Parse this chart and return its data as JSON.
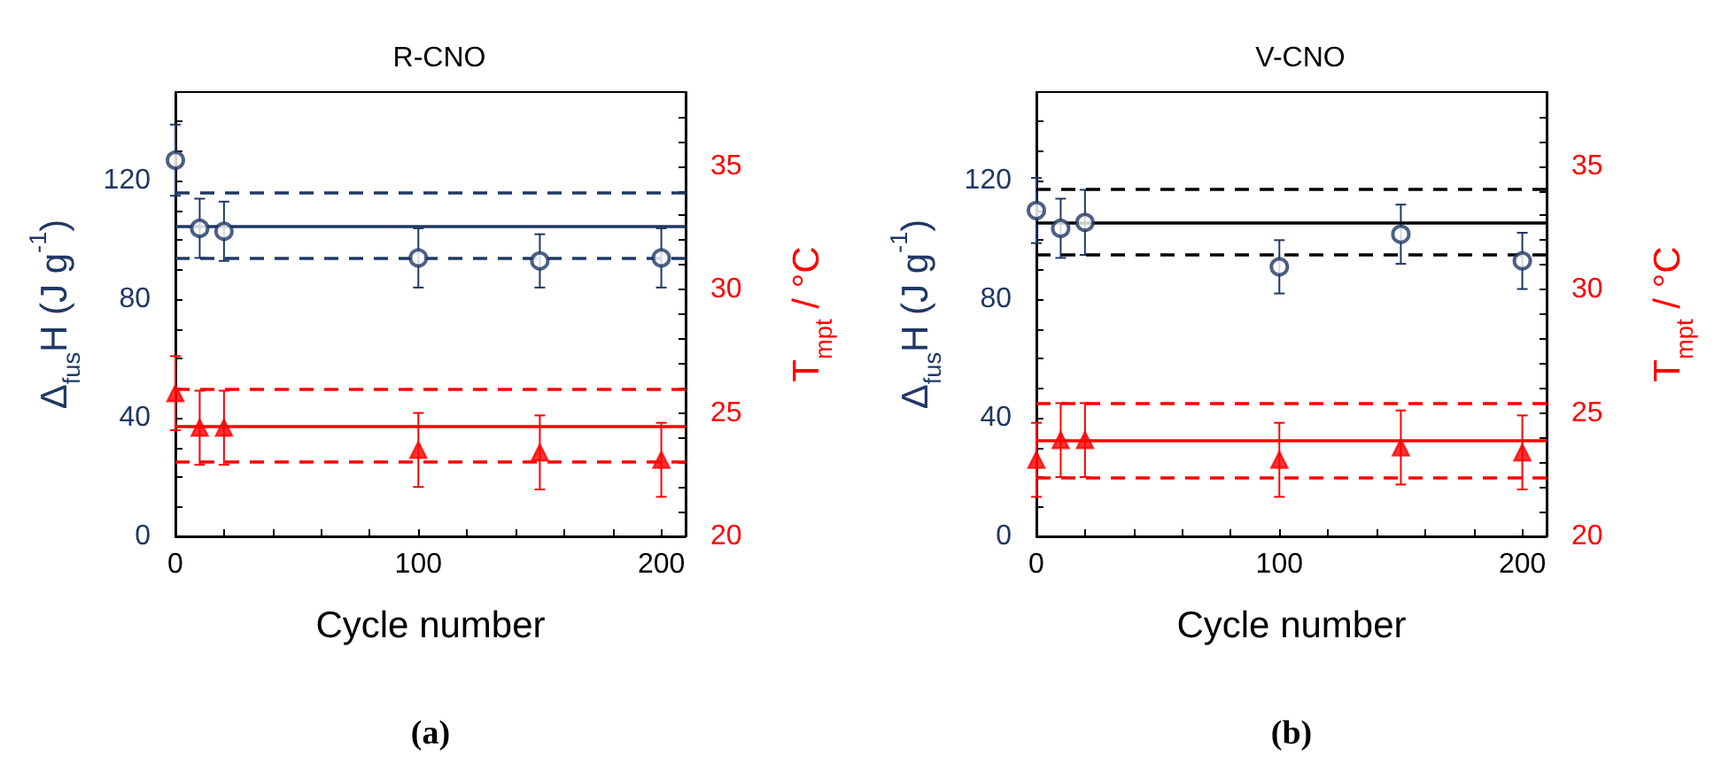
{
  "chart_data": [
    {
      "type": "scatter",
      "title": "R-CNO",
      "xlabel": "Cycle number",
      "ylabel": "Δ$_{fus}$H (J g$^{-1}$)",
      "y2label": "T$_{mpt}$ / °C",
      "annotations": [
        "(a)"
      ],
      "xlim": [
        0,
        210
      ],
      "xticks": [
        0,
        {
          "value": 20,
          "label": null
        },
        {
          "value": 40,
          "label": null
        },
        {
          "value": 60,
          "label": null
        },
        {
          "value": 80,
          "label": null
        },
        100,
        {
          "value": 120,
          "label": null
        },
        {
          "value": 140,
          "label": null
        },
        {
          "value": 160,
          "label": null
        },
        {
          "value": 180,
          "label": null
        },
        200
      ],
      "ylim": [
        0,
        150
      ],
      "yticks": [
        0,
        {
          "value": 10,
          "label": null
        },
        {
          "value": 20,
          "label": null
        },
        {
          "value": 30,
          "label": null
        },
        40,
        {
          "value": 50,
          "label": null
        },
        {
          "value": 60,
          "label": null
        },
        {
          "value": 70,
          "label": null
        },
        80,
        {
          "value": 90,
          "label": null
        },
        {
          "value": 100,
          "label": null
        },
        {
          "value": 110,
          "label": null
        },
        120,
        {
          "value": 130,
          "label": null
        },
        {
          "value": 140,
          "label": null
        }
      ],
      "y2lim": [
        20,
        38
      ],
      "y2ticks": [
        20,
        {
          "value": 21,
          "label": null
        },
        {
          "value": 22,
          "label": null
        },
        {
          "value": 23,
          "label": null
        },
        {
          "value": 24,
          "label": null
        },
        25,
        {
          "value": 26,
          "label": null
        },
        {
          "value": 27,
          "label": null
        },
        {
          "value": 28,
          "label": null
        },
        {
          "value": 29,
          "label": null
        },
        30,
        {
          "value": 31,
          "label": null
        },
        {
          "value": 32,
          "label": null
        },
        {
          "value": 33,
          "label": null
        },
        {
          "value": 34,
          "label": null
        },
        35,
        {
          "value": 36,
          "label": null
        },
        {
          "value": 37,
          "label": null
        }
      ],
      "grid": false,
      "series": [
        {
          "axis": "y",
          "color": "#203864",
          "marker": "circle",
          "x": [
            0,
            10,
            20,
            100,
            150,
            200
          ],
          "values": [
            127,
            104,
            103,
            94,
            93,
            94
          ],
          "errors": [
            12,
            10,
            10,
            10,
            9,
            10
          ]
        },
        {
          "axis": "y2",
          "color": "#ff0000",
          "marker": "triangle",
          "x": [
            0,
            10,
            20,
            100,
            150,
            200
          ],
          "values": [
            25.8,
            24.4,
            24.4,
            23.5,
            23.4,
            23.1
          ],
          "errors": [
            1.5,
            1.5,
            1.5,
            1.5,
            1.5,
            1.5
          ]
        }
      ],
      "ref_lines": [
        {
          "axis": "y",
          "value": 105,
          "color": "#203864",
          "line_style": "solid"
        },
        {
          "axis": "y",
          "value": 116,
          "color": "#203864",
          "line_style": "dashed"
        },
        {
          "axis": "y",
          "value": 94,
          "color": "#203864",
          "line_style": "dashed"
        },
        {
          "axis": "y2",
          "value": 24.5,
          "color": "#ff0000",
          "line_style": "solid"
        },
        {
          "axis": "y2",
          "value": 26,
          "color": "#ff0000",
          "line_style": "dashed"
        },
        {
          "axis": "y2",
          "value": 23,
          "color": "#ff0000",
          "line_style": "dashed"
        }
      ]
    },
    {
      "type": "scatter",
      "title": "V-CNO",
      "xlabel": "Cycle number",
      "ylabel": "Δ$_{fus}$H (J g$^{-1}$)",
      "y2label": "T$_{mpt}$ / °C",
      "annotations": [
        "(b)"
      ],
      "xlim": [
        0,
        210
      ],
      "xticks": [
        0,
        {
          "value": 20,
          "label": null
        },
        {
          "value": 40,
          "label": null
        },
        {
          "value": 60,
          "label": null
        },
        {
          "value": 80,
          "label": null
        },
        100,
        {
          "value": 120,
          "label": null
        },
        {
          "value": 140,
          "label": null
        },
        {
          "value": 160,
          "label": null
        },
        {
          "value": 180,
          "label": null
        },
        200
      ],
      "ylim": [
        0,
        150
      ],
      "yticks": [
        0,
        {
          "value": 10,
          "label": null
        },
        {
          "value": 20,
          "label": null
        },
        {
          "value": 30,
          "label": null
        },
        40,
        {
          "value": 50,
          "label": null
        },
        {
          "value": 60,
          "label": null
        },
        {
          "value": 70,
          "label": null
        },
        80,
        {
          "value": 90,
          "label": null
        },
        {
          "value": 100,
          "label": null
        },
        {
          "value": 110,
          "label": null
        },
        120,
        {
          "value": 130,
          "label": null
        },
        {
          "value": 140,
          "label": null
        }
      ],
      "y2lim": [
        20,
        38
      ],
      "y2ticks": [
        20,
        {
          "value": 21,
          "label": null
        },
        {
          "value": 22,
          "label": null
        },
        {
          "value": 23,
          "label": null
        },
        {
          "value": 24,
          "label": null
        },
        25,
        {
          "value": 26,
          "label": null
        },
        {
          "value": 27,
          "label": null
        },
        {
          "value": 28,
          "label": null
        },
        {
          "value": 29,
          "label": null
        },
        30,
        {
          "value": 31,
          "label": null
        },
        {
          "value": 32,
          "label": null
        },
        {
          "value": 33,
          "label": null
        },
        {
          "value": 34,
          "label": null
        },
        35,
        {
          "value": 36,
          "label": null
        },
        {
          "value": 37,
          "label": null
        }
      ],
      "grid": false,
      "series": [
        {
          "axis": "y",
          "color": "#203864",
          "marker": "circle",
          "x": [
            0,
            10,
            20,
            100,
            150,
            200
          ],
          "values": [
            110,
            104,
            106,
            91,
            102,
            93
          ],
          "errors": [
            11,
            10,
            11,
            9,
            10,
            9.5
          ]
        },
        {
          "axis": "y2",
          "color": "#ff0000",
          "marker": "triangle",
          "x": [
            0,
            10,
            20,
            100,
            150,
            200
          ],
          "values": [
            23.1,
            23.9,
            23.9,
            23.1,
            23.6,
            23.4
          ],
          "errors": [
            1.5,
            1.5,
            1.5,
            1.5,
            1.5,
            1.5
          ]
        }
      ],
      "ref_lines": [
        {
          "axis": "y",
          "value": 106,
          "color": "#000000",
          "line_style": "solid"
        },
        {
          "axis": "y",
          "value": 117,
          "color": "#000000",
          "line_style": "dashed"
        },
        {
          "axis": "y",
          "value": 95,
          "color": "#000000",
          "line_style": "dashed"
        },
        {
          "axis": "y2",
          "value": 23.9,
          "color": "#ff0000",
          "line_style": "solid"
        },
        {
          "axis": "y2",
          "value": 25.4,
          "color": "#ff0000",
          "line_style": "dashed"
        },
        {
          "axis": "y2",
          "value": 22.4,
          "color": "#ff0000",
          "line_style": "dashed"
        }
      ]
    }
  ]
}
